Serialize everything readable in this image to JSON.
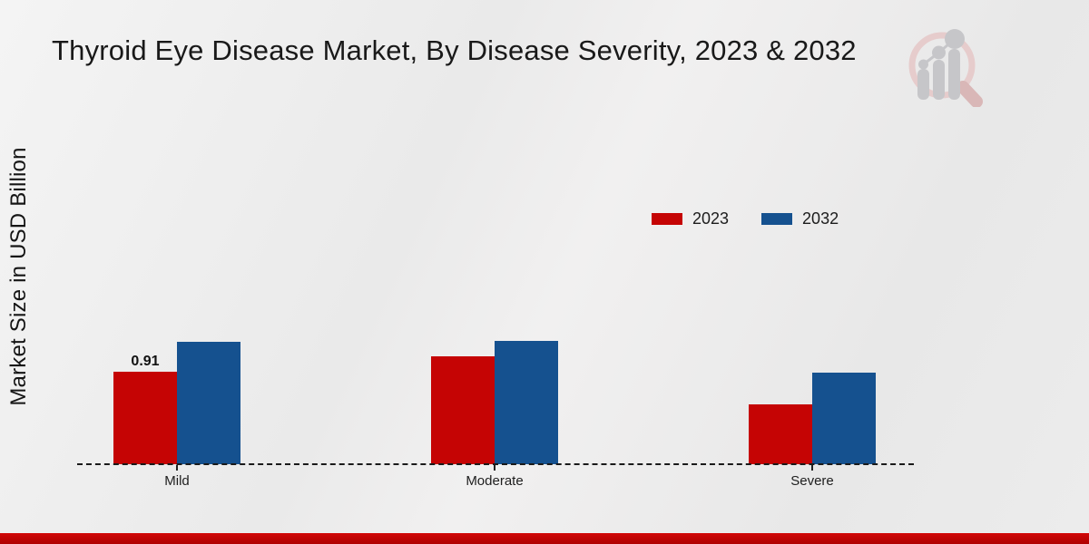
{
  "title": "Thyroid Eye Disease Market, By Disease Severity, 2023 & 2032",
  "y_axis_label": "Market Size in USD Billion",
  "legend": {
    "items": [
      {
        "label": "2023",
        "color": "#c50404"
      },
      {
        "label": "2032",
        "color": "#15518f"
      }
    ]
  },
  "colors": {
    "series_2023": "#c50404",
    "series_2032": "#15518f",
    "footer_bar": "#c30404",
    "background": "#ebebeb",
    "baseline": "#1a1a1a",
    "logo_ring": "#e6cccc",
    "logo_gray": "#c6c6c9"
  },
  "icons": {
    "top_right_logo": "magnifier-bar-chart-logo"
  },
  "chart_data": {
    "type": "bar",
    "title": "Thyroid Eye Disease Market, By Disease Severity, 2023 & 2032",
    "xlabel": "",
    "ylabel": "Market Size in USD Billion",
    "categories": [
      "Mild",
      "Moderate",
      "Severe"
    ],
    "series": [
      {
        "name": "2023",
        "color": "#c50404",
        "values": [
          0.91,
          1.06,
          0.59
        ]
      },
      {
        "name": "2032",
        "color": "#15518f",
        "values": [
          1.2,
          1.21,
          0.9
        ]
      }
    ],
    "value_labels": [
      {
        "series_index": 0,
        "category_index": 0,
        "text": "0.91"
      }
    ],
    "ylim": [
      0,
      3.5
    ],
    "grid": false,
    "baseline_style": "dashed",
    "legend_position": "upper-right-inside"
  }
}
